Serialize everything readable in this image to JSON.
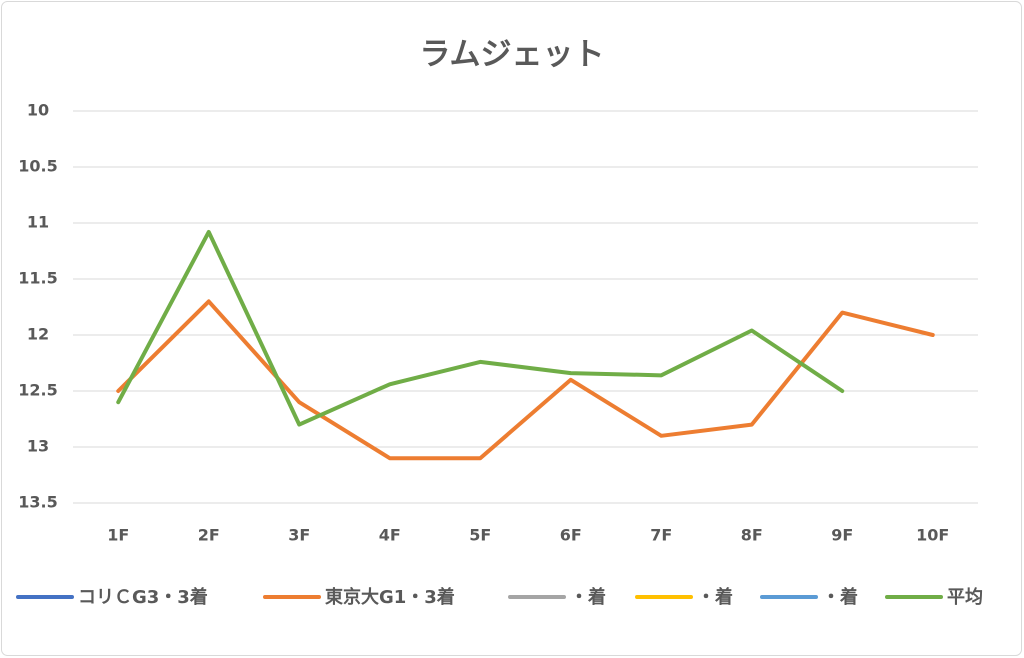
{
  "chart_data": {
    "type": "line",
    "title": "ラムジェット",
    "categories": [
      "1F",
      "2F",
      "3F",
      "4F",
      "5F",
      "6F",
      "7F",
      "8F",
      "9F",
      "10F"
    ],
    "series": [
      {
        "name": "コリＣG3・3着",
        "color": "#4472c4",
        "values": [
          null,
          null,
          null,
          null,
          null,
          null,
          null,
          null,
          null,
          null
        ]
      },
      {
        "name": "東京大G1・3着",
        "color": "#ed7d31",
        "values": [
          12.5,
          11.7,
          12.6,
          13.1,
          13.1,
          12.4,
          12.9,
          12.8,
          11.8,
          12.0
        ]
      },
      {
        "name": "・着",
        "color": "#a5a5a5",
        "values": [
          null,
          null,
          null,
          null,
          null,
          null,
          null,
          null,
          null,
          null
        ]
      },
      {
        "name": "・着",
        "color": "#ffc000",
        "values": [
          null,
          null,
          null,
          null,
          null,
          null,
          null,
          null,
          null,
          null
        ]
      },
      {
        "name": "・着",
        "color": "#5b9bd5",
        "values": [
          null,
          null,
          null,
          null,
          null,
          null,
          null,
          null,
          null,
          null
        ]
      },
      {
        "name": "平均",
        "color": "#70ad47",
        "values": [
          12.6,
          11.08,
          12.8,
          12.44,
          12.24,
          12.34,
          12.36,
          11.96,
          12.5,
          null
        ]
      }
    ],
    "ylim": [
      10,
      13.5
    ],
    "yticks": [
      10,
      10.5,
      11,
      11.5,
      12,
      12.5,
      13,
      13.5
    ],
    "y_reversed": true,
    "grid": true,
    "legend": "bottom"
  }
}
